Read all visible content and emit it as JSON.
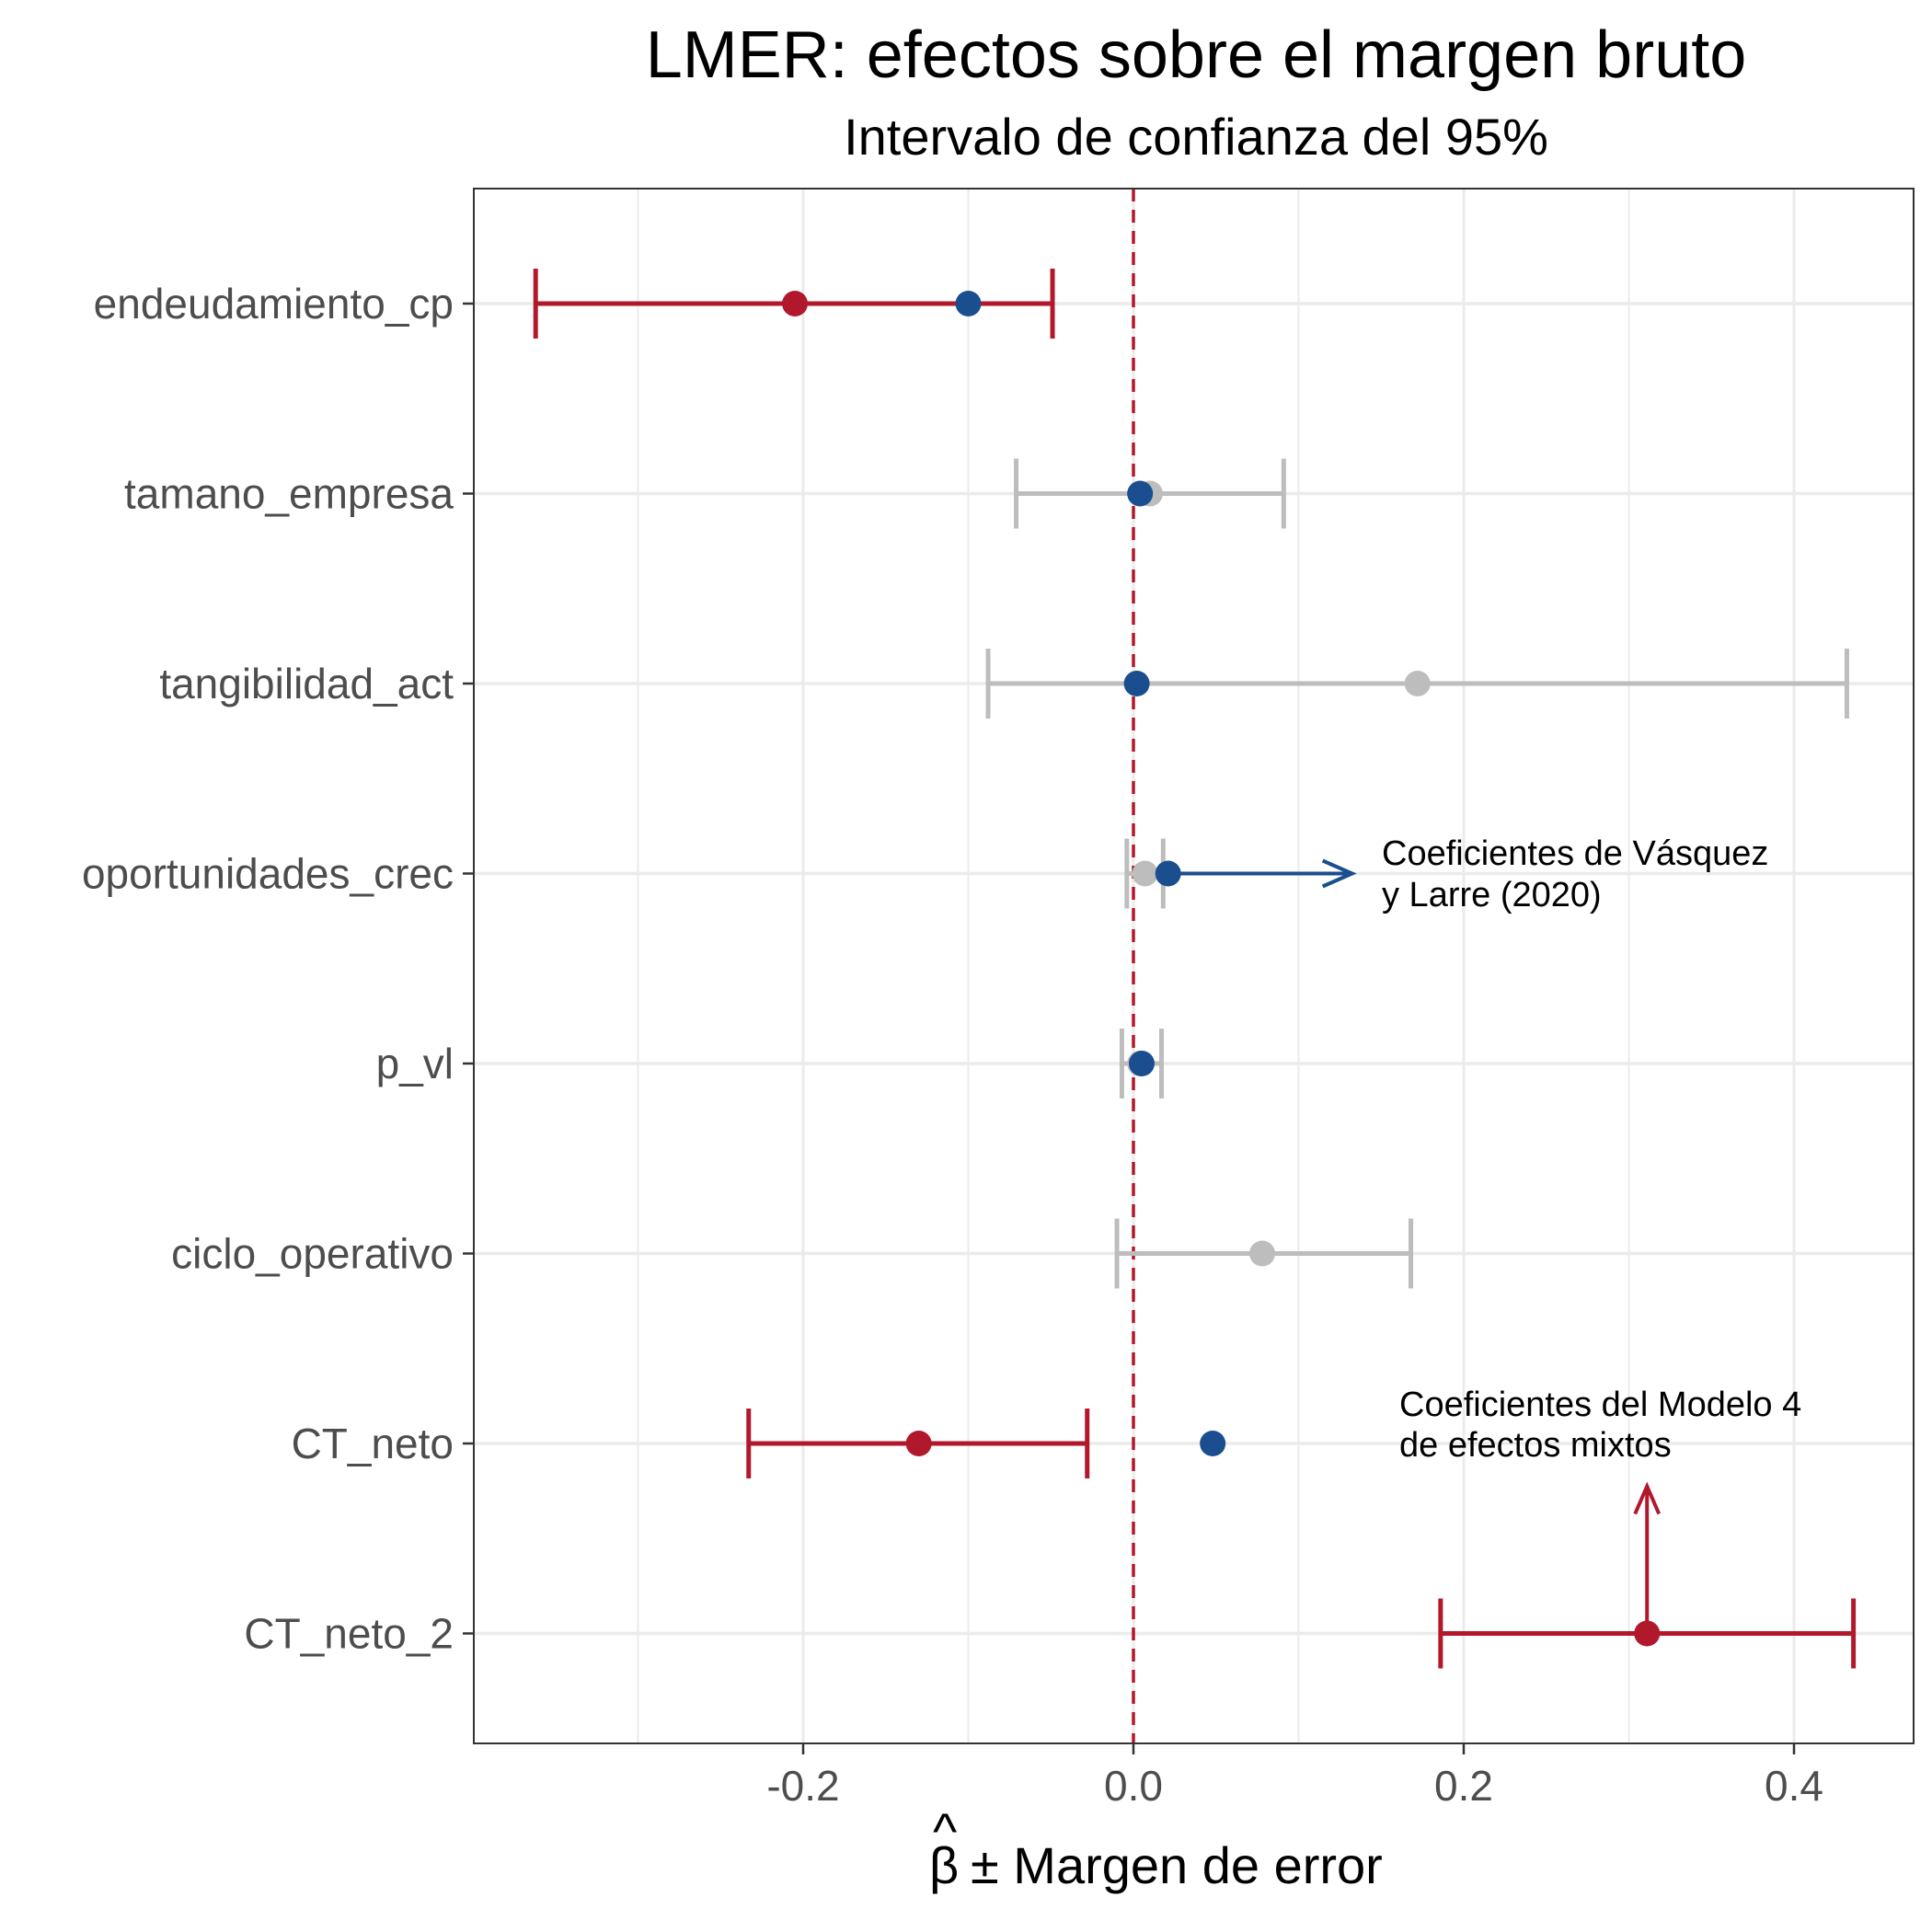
{
  "chart_data": {
    "type": "errorbar",
    "title": "LMER: efectos sobre el margen bruto",
    "subtitle": "Intervalo de confianza del 95%",
    "xlabel_symbol": "β",
    "xlabel_hat": "^",
    "xlabel": "± Margen de error",
    "ylabel": "",
    "xlim": [
      -0.4,
      0.47
    ],
    "x_ticks": [
      -0.2,
      0.0,
      0.2,
      0.4
    ],
    "x_tick_labels": [
      "-0.2",
      "0.0",
      "0.2",
      "0.4"
    ],
    "x_minor_ticks": [
      -0.3,
      -0.1,
      0.1,
      0.3
    ],
    "reference_line_x": 0,
    "grid": true,
    "categories": [
      "endeudamiento_cp",
      "tamano_empresa",
      "tangibilidad_act",
      "oportunidades_crec",
      "p_vl",
      "ciclo_operativo",
      "CT_neto",
      "CT_neto_2"
    ],
    "colors": {
      "significant": "#b2182b",
      "not_significant": "#bdbdbd",
      "reference": "#1a4e8f",
      "zero_line": "#b2182b",
      "grid": "#ebebeb",
      "panel_border": "#333333"
    },
    "series": [
      {
        "name": "Coeficientes del Modelo 4 de efectos mixtos",
        "estimates": [
          -0.205,
          0.01,
          0.172,
          0.007,
          0.004,
          0.078,
          -0.13,
          0.311
        ],
        "lower": [
          -0.362,
          -0.071,
          -0.088,
          -0.004,
          -0.007,
          -0.01,
          -0.233,
          0.186
        ],
        "upper": [
          -0.049,
          0.091,
          0.432,
          0.018,
          0.017,
          0.168,
          -0.028,
          0.436
        ],
        "significant": [
          true,
          false,
          false,
          false,
          false,
          false,
          true,
          true
        ]
      },
      {
        "name": "Coeficientes de Vásquez y Larre (2020)",
        "estimates": [
          -0.1,
          0.004,
          0.002,
          0.021,
          0.005,
          null,
          0.048,
          null
        ]
      }
    ],
    "annotations": [
      {
        "lines": [
          "Coeficientes de Vásquez",
          "y Larre (2020)"
        ]
      },
      {
        "lines": [
          "Coeficientes del Modelo 4",
          "de efectos mixtos"
        ]
      }
    ]
  }
}
